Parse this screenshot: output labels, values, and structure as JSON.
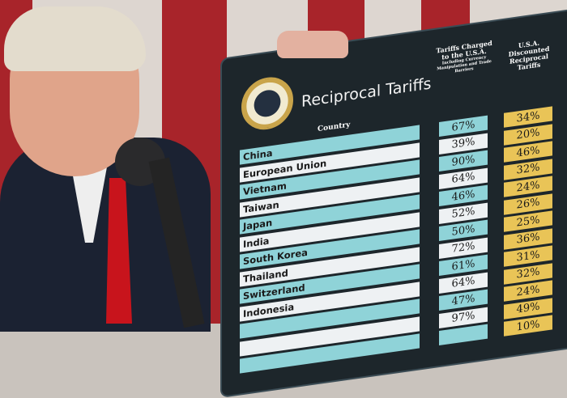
{
  "board": {
    "title": "Reciprocal Tariffs",
    "country_header": "Country",
    "col1_header": "Tariffs Charged to the U.S.A.",
    "col1_subheader": "Including Currency Manipulation and Trade Barriers",
    "col2_header": "U.S.A. Discounted Reciprocal Tariffs",
    "seal": "Seal of the President of the United States",
    "rows": [
      {
        "country": "China",
        "charged": "67%",
        "reciprocal": "34%"
      },
      {
        "country": "European Union",
        "charged": "39%",
        "reciprocal": "20%"
      },
      {
        "country": "Vietnam",
        "charged": "90%",
        "reciprocal": "46%"
      },
      {
        "country": "Taiwan",
        "charged": "64%",
        "reciprocal": "32%"
      },
      {
        "country": "Japan",
        "charged": "46%",
        "reciprocal": "24%"
      },
      {
        "country": "India",
        "charged": "52%",
        "reciprocal": "26%"
      },
      {
        "country": "South Korea",
        "charged": "50%",
        "reciprocal": "25%"
      },
      {
        "country": "Thailand",
        "charged": "72%",
        "reciprocal": "36%"
      },
      {
        "country": "Switzerland",
        "charged": "61%",
        "reciprocal": "31%"
      },
      {
        "country": "Indonesia",
        "charged": "64%",
        "reciprocal": "32%"
      },
      {
        "country": "",
        "charged": "47%",
        "reciprocal": "24%"
      },
      {
        "country": "",
        "charged": "97%",
        "reciprocal": "49%"
      },
      {
        "country": "",
        "charged": "",
        "reciprocal": "10%"
      }
    ]
  },
  "colors": {
    "teal": "#8fd3d8",
    "gold": "#e9c457",
    "board": "#1d262b",
    "flag_red": "#a8242a"
  }
}
